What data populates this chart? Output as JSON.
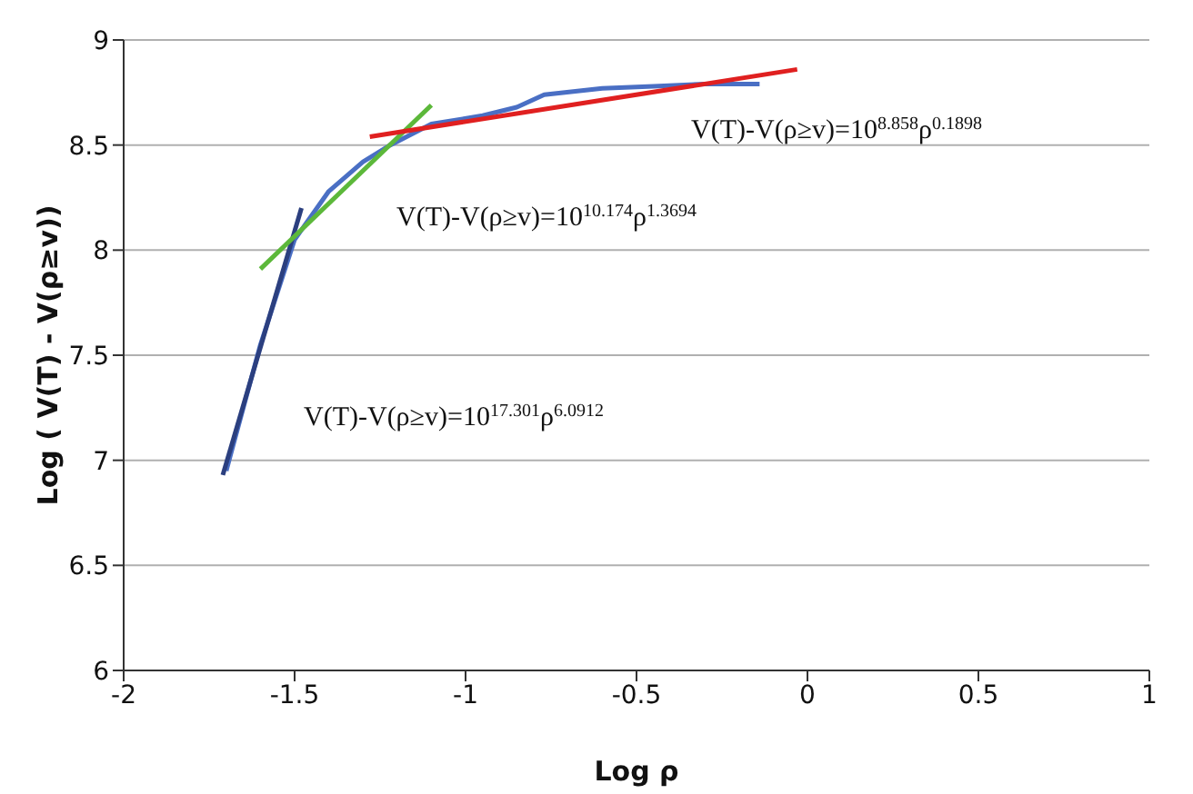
{
  "chart_data": {
    "type": "line",
    "xlabel": "Log  ρ",
    "ylabel": "Log  ( V(T) - V(ρ≥v))",
    "xlim": [
      -2,
      1
    ],
    "xticks": [
      -2,
      -1.5,
      -1,
      -0.5,
      0,
      0.5,
      1
    ],
    "ylim": [
      6,
      9
    ],
    "yticks": [
      6,
      6.5,
      7,
      7.5,
      8,
      8.5,
      9
    ],
    "grid": "y",
    "marker": "none",
    "series": [
      {
        "color": "#4a6fc4",
        "x": [
          -1.7,
          -1.6,
          -1.5,
          -1.4,
          -1.3,
          -1.22,
          -1.1,
          -0.95,
          -0.85,
          -0.77,
          -0.6,
          -0.45,
          -0.3,
          -0.14
        ],
        "values": [
          6.95,
          7.55,
          8.05,
          8.28,
          8.42,
          8.5,
          8.6,
          8.64,
          8.68,
          8.74,
          8.77,
          8.78,
          8.79,
          8.79
        ]
      },
      {
        "color": "#2b3f7f",
        "x": [
          -1.71,
          -1.48
        ],
        "values": [
          6.93,
          8.2
        ]
      },
      {
        "color": "#5cb83a",
        "x": [
          -1.6,
          -1.1
        ],
        "values": [
          7.91,
          8.69
        ]
      },
      {
        "color": "#e02020",
        "x": [
          -1.28,
          -0.03
        ],
        "values": [
          8.54,
          8.86
        ]
      }
    ],
    "annotations": [
      "V(T)-V(ρ≥v)=10$^{8.858}$ρ$^{0.1898}$",
      "V(T)-V(ρ≥v)=10$^{10.174}$ρ$^{1.3694}$",
      "V(T)-V(ρ≥v)=10$^{17.301}$ρ$^{6.0912}$"
    ]
  }
}
